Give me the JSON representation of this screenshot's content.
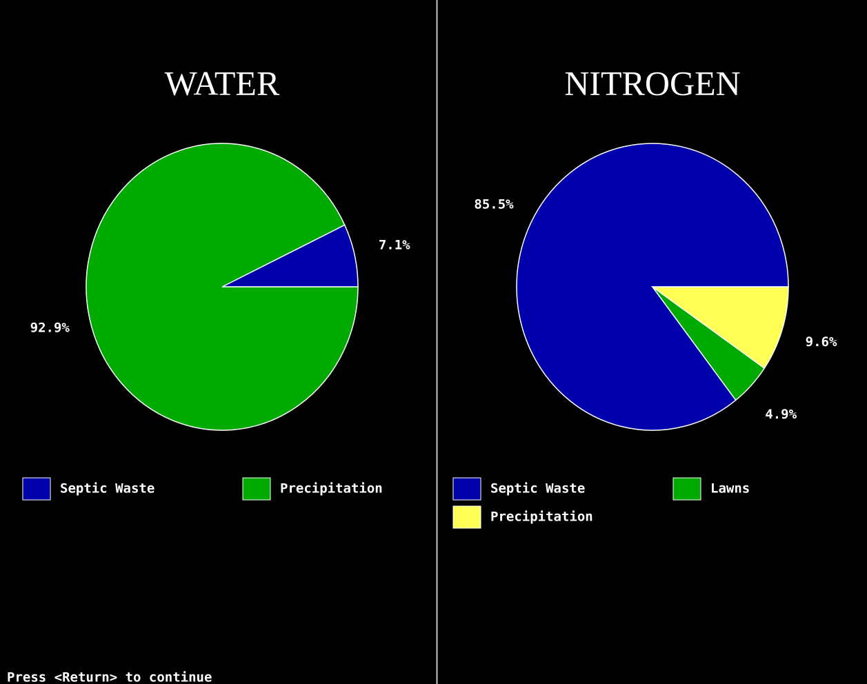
{
  "chart_data": [
    {
      "type": "pie",
      "title": "WATER",
      "categories": [
        "Septic Waste",
        "Precipitation"
      ],
      "values": [
        7.1,
        92.9
      ],
      "value_labels": [
        "7.1%",
        "92.9%"
      ],
      "colors": [
        "#0000aa",
        "#00aa00"
      ]
    },
    {
      "type": "pie",
      "title": "NITROGEN",
      "categories": [
        "Septic Waste",
        "Lawns",
        "Precipitation"
      ],
      "values": [
        85.5,
        4.9,
        9.6
      ],
      "value_labels": [
        "85.5%",
        "4.9%",
        "9.6%"
      ],
      "colors": [
        "#0000aa",
        "#00aa00",
        "#ffff55"
      ]
    }
  ],
  "prompt": "Press <Return> to continue"
}
